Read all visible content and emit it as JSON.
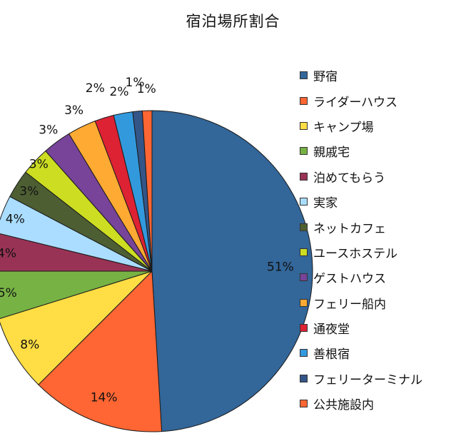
{
  "chart_data": {
    "type": "pie",
    "title": "宿泊場所割合",
    "start_angle_deg": 0,
    "direction": "clockwise",
    "legend_position": "right",
    "slices": [
      {
        "label": "野宿",
        "value": 51,
        "value_label": "51%",
        "color": "#336699"
      },
      {
        "label": "ライダーハウス",
        "value": 14,
        "value_label": "14%",
        "color": "#ff6633"
      },
      {
        "label": "キャンプ場",
        "value": 8,
        "value_label": "8%",
        "color": "#ffdd44"
      },
      {
        "label": "親戚宅",
        "value": 5,
        "value_label": "5%",
        "color": "#77b244"
      },
      {
        "label": "泊めてもらう",
        "value": 4,
        "value_label": "4%",
        "color": "#993355"
      },
      {
        "label": "実家",
        "value": 4,
        "value_label": "4%",
        "color": "#aaddff"
      },
      {
        "label": "ネットカフェ",
        "value": 3,
        "value_label": "3%",
        "color": "#4d5e33"
      },
      {
        "label": "ユースホステル",
        "value": 3,
        "value_label": "3%",
        "color": "#ccdd22"
      },
      {
        "label": "ゲストハウス",
        "value": 3,
        "value_label": "3%",
        "color": "#774499"
      },
      {
        "label": "フェリー船内",
        "value": 3,
        "value_label": "3%",
        "color": "#ffaa33"
      },
      {
        "label": "通夜堂",
        "value": 2,
        "value_label": "2%",
        "color": "#dd2233"
      },
      {
        "label": "善根宿",
        "value": 2,
        "value_label": "2%",
        "color": "#3399dd"
      },
      {
        "label": "フェリーターミナル",
        "value": 1,
        "value_label": "1%",
        "color": "#335588"
      },
      {
        "label": "公共施設内",
        "value": 1,
        "value_label": "1%",
        "color": "#ff6633"
      }
    ]
  }
}
